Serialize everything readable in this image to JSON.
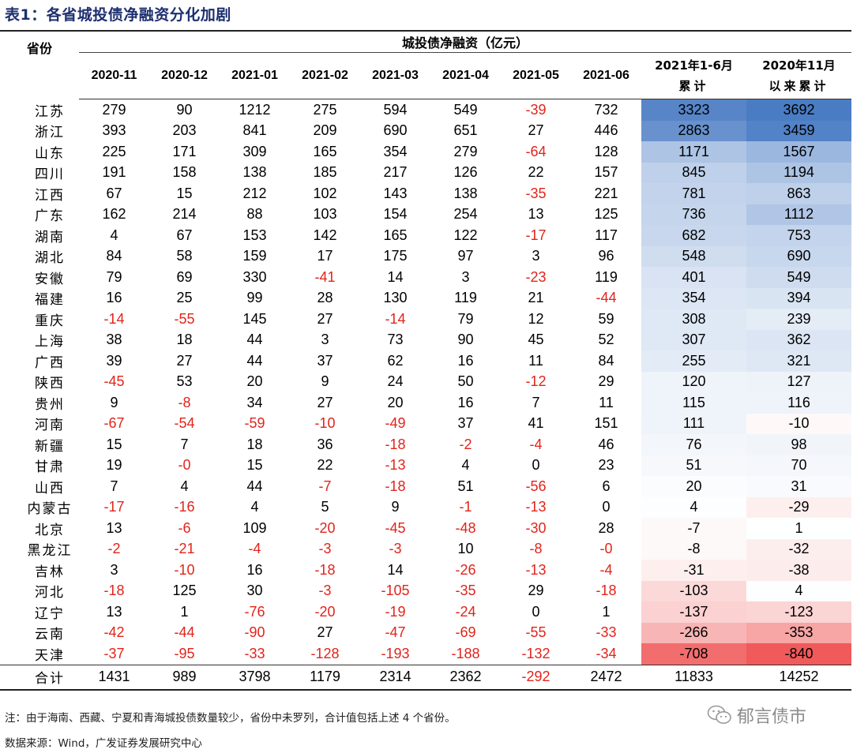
{
  "title": "表1：各省城投债净融资分化加剧",
  "header": {
    "province": "省份",
    "group": "城投债净融资（亿元）",
    "months": [
      "2020-11",
      "2020-12",
      "2021-01",
      "2021-02",
      "2021-03",
      "2021-04",
      "2021-05",
      "2021-06"
    ],
    "cum1_line1": "2021年1-6月",
    "cum1_line2": "累计",
    "cum2_line1": "2020年11月",
    "cum2_line2": "以来累计"
  },
  "rows": [
    {
      "p": "江苏",
      "v": [
        279,
        90,
        1212,
        275,
        594,
        549,
        -39,
        732,
        3323,
        3692
      ]
    },
    {
      "p": "浙江",
      "v": [
        393,
        203,
        841,
        209,
        690,
        651,
        27,
        446,
        2863,
        3459
      ]
    },
    {
      "p": "山东",
      "v": [
        225,
        171,
        309,
        165,
        354,
        279,
        -64,
        128,
        1171,
        1567
      ]
    },
    {
      "p": "四川",
      "v": [
        191,
        158,
        138,
        185,
        217,
        126,
        22,
        157,
        845,
        1194
      ]
    },
    {
      "p": "江西",
      "v": [
        67,
        15,
        212,
        102,
        143,
        138,
        -35,
        221,
        781,
        863
      ]
    },
    {
      "p": "广东",
      "v": [
        162,
        214,
        88,
        103,
        154,
        254,
        13,
        125,
        736,
        1112
      ]
    },
    {
      "p": "湖南",
      "v": [
        4,
        67,
        153,
        142,
        165,
        122,
        -17,
        117,
        682,
        753
      ]
    },
    {
      "p": "湖北",
      "v": [
        84,
        58,
        159,
        17,
        175,
        97,
        3,
        96,
        548,
        690
      ]
    },
    {
      "p": "安徽",
      "v": [
        79,
        69,
        330,
        -41,
        14,
        3,
        -23,
        119,
        401,
        549
      ]
    },
    {
      "p": "福建",
      "v": [
        16,
        25,
        99,
        28,
        130,
        119,
        21,
        -44,
        354,
        394
      ]
    },
    {
      "p": "重庆",
      "v": [
        -14,
        -55,
        145,
        27,
        -14,
        79,
        12,
        59,
        308,
        239
      ]
    },
    {
      "p": "上海",
      "v": [
        38,
        18,
        44,
        3,
        73,
        90,
        45,
        52,
        307,
        362
      ]
    },
    {
      "p": "广西",
      "v": [
        39,
        27,
        44,
        37,
        62,
        16,
        11,
        84,
        255,
        321
      ]
    },
    {
      "p": "陕西",
      "v": [
        -45,
        53,
        20,
        9,
        24,
        50,
        -12,
        29,
        120,
        127
      ]
    },
    {
      "p": "贵州",
      "v": [
        9,
        -8,
        34,
        27,
        20,
        16,
        7,
        11,
        115,
        116
      ]
    },
    {
      "p": "河南",
      "v": [
        -67,
        -54,
        -59,
        -10,
        -49,
        37,
        41,
        151,
        111,
        -10
      ]
    },
    {
      "p": "新疆",
      "v": [
        15,
        7,
        18,
        36,
        -18,
        -2,
        -4,
        46,
        76,
        98
      ]
    },
    {
      "p": "甘肃",
      "v": [
        19,
        "-0",
        15,
        22,
        -13,
        4,
        0,
        23,
        51,
        70
      ]
    },
    {
      "p": "山西",
      "v": [
        7,
        4,
        44,
        -7,
        -18,
        51,
        -56,
        6,
        20,
        31
      ]
    },
    {
      "p": "内蒙古",
      "v": [
        -17,
        -16,
        4,
        5,
        9,
        -1,
        -13,
        0,
        4,
        -29
      ]
    },
    {
      "p": "北京",
      "v": [
        13,
        -6,
        109,
        -20,
        -45,
        -48,
        -30,
        28,
        -7,
        1
      ]
    },
    {
      "p": "黑龙江",
      "v": [
        -2,
        -21,
        -4,
        -3,
        -3,
        10,
        -8,
        "-0",
        -8,
        -32
      ]
    },
    {
      "p": "吉林",
      "v": [
        3,
        -10,
        16,
        -18,
        14,
        -26,
        -13,
        -4,
        -31,
        -38
      ]
    },
    {
      "p": "河北",
      "v": [
        -18,
        125,
        30,
        -3,
        -105,
        -35,
        29,
        -18,
        -103,
        4
      ]
    },
    {
      "p": "辽宁",
      "v": [
        13,
        1,
        -76,
        -20,
        -19,
        -24,
        0,
        1,
        -137,
        -123
      ]
    },
    {
      "p": "云南",
      "v": [
        -42,
        -44,
        -90,
        27,
        -47,
        -69,
        -55,
        -33,
        -266,
        -353
      ]
    },
    {
      "p": "天津",
      "v": [
        -37,
        -95,
        -33,
        -128,
        -193,
        -188,
        -132,
        -34,
        -708,
        -840
      ]
    }
  ],
  "total": {
    "p": "合计",
    "v": [
      1431,
      989,
      3798,
      1179,
      2314,
      2362,
      -292,
      2472,
      11833,
      14252
    ]
  },
  "note": "注：由于海南、西藏、宁夏和青海城投债数量较少，省份中未罗列，合计值包括上述 4 个省份。",
  "source": "数据来源：Wind，广发证券发展研究中心",
  "watermark": "郁言债市",
  "colors": {
    "negative": "#e1241b",
    "pos_max": "#4a7cc4",
    "neg_max": "#f05a5a",
    "title": "#1d2f6f"
  }
}
